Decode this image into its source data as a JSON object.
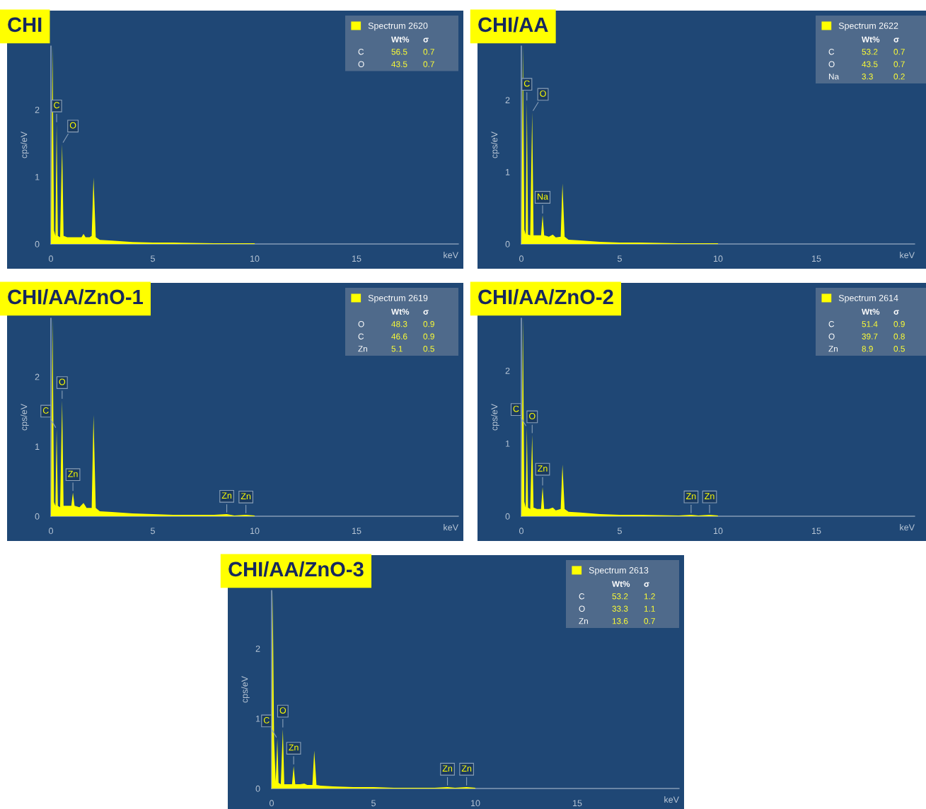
{
  "chart_data": [
    {
      "type": "area",
      "title": "CHI",
      "ylabel": "cps/eV",
      "xlabel": "keV",
      "xlim": [
        0,
        20
      ],
      "ylim": [
        0,
        2.95
      ],
      "xticks": [
        0,
        5,
        10,
        15
      ],
      "yticks": [
        0,
        1,
        2
      ],
      "grid": false,
      "legend": "top right",
      "x": [
        0,
        0.08,
        0.15,
        0.22,
        0.28,
        0.34,
        0.45,
        0.55,
        0.62,
        0.8,
        1.2,
        1.5,
        1.6,
        1.7,
        1.9,
        2.0,
        2.09,
        2.2,
        2.4,
        3,
        4,
        5,
        6,
        8,
        10
      ],
      "series": [
        {
          "name": "Spectrum 2620",
          "color": "#ffff00",
          "values": [
            0,
            2.95,
            0.2,
            0.12,
            1.79,
            0.12,
            0.1,
            1.49,
            0.12,
            0.1,
            0.1,
            0.1,
            0.15,
            0.1,
            0.1,
            0.12,
            0.99,
            0.1,
            0.06,
            0.05,
            0.03,
            0.02,
            0.02,
            0.01,
            0.01
          ]
        }
      ],
      "annotations": [
        "Wt%",
        "σ",
        "C",
        "56.5",
        "0.7",
        "O",
        "43.5",
        "0.7",
        {
          "text": "C",
          "x": 0.28,
          "y": 1.79
        },
        {
          "text": "O",
          "x": 0.55,
          "y": 1.49
        }
      ]
    },
    {
      "type": "area",
      "title": "CHI/AA",
      "ylabel": "cps/eV",
      "xlabel": "keV",
      "xlim": [
        0,
        20
      ],
      "ylim": [
        0,
        2.75
      ],
      "xticks": [
        0,
        5,
        10,
        15
      ],
      "yticks": [
        0,
        1,
        2
      ],
      "grid": false,
      "legend": "top right",
      "x": [
        0,
        0.08,
        0.15,
        0.22,
        0.28,
        0.34,
        0.45,
        0.55,
        0.62,
        0.8,
        1.0,
        1.08,
        1.16,
        1.4,
        1.6,
        1.75,
        2.0,
        2.09,
        2.2,
        2.4,
        3,
        4,
        5,
        6,
        8,
        10
      ],
      "series": [
        {
          "name": "Spectrum 2622",
          "color": "#ffff00",
          "values": [
            0,
            2.75,
            0.2,
            0.13,
            1.97,
            0.13,
            0.12,
            1.83,
            0.12,
            0.12,
            0.12,
            0.4,
            0.12,
            0.1,
            0.13,
            0.09,
            0.1,
            0.84,
            0.1,
            0.06,
            0.05,
            0.03,
            0.02,
            0.02,
            0.01,
            0.01
          ]
        }
      ],
      "annotations": [
        "Wt%",
        "σ",
        "C",
        "53.2",
        "0.7",
        "O",
        "43.5",
        "0.7",
        "Na",
        "3.3",
        "0.2",
        {
          "text": "C",
          "x": 0.28,
          "y": 1.97
        },
        {
          "text": "O",
          "x": 0.55,
          "y": 1.83
        },
        {
          "text": "Na",
          "x": 1.08,
          "y": 0.4
        }
      ]
    },
    {
      "type": "area",
      "title": "CHI/AA/ZnO-1",
      "ylabel": "cps/eV",
      "xlabel": "keV",
      "xlim": [
        0,
        20
      ],
      "ylim": [
        0,
        2.84
      ],
      "xticks": [
        0,
        5,
        10,
        15
      ],
      "yticks": [
        0,
        1,
        2
      ],
      "grid": false,
      "legend": "top right",
      "x": [
        0,
        0.08,
        0.15,
        0.22,
        0.28,
        0.34,
        0.45,
        0.55,
        0.62,
        0.8,
        1.0,
        1.08,
        1.16,
        1.4,
        1.6,
        1.75,
        2.0,
        2.09,
        2.2,
        2.4,
        3,
        4,
        5,
        6,
        8,
        8.63,
        9,
        9.57,
        10
      ],
      "series": [
        {
          "name": "Spectrum 2619",
          "color": "#ffff00",
          "values": [
            0,
            2.84,
            0.2,
            0.15,
            1.25,
            0.15,
            0.13,
            1.66,
            0.15,
            0.15,
            0.15,
            0.34,
            0.15,
            0.13,
            0.19,
            0.12,
            0.12,
            1.45,
            0.12,
            0.07,
            0.06,
            0.04,
            0.03,
            0.02,
            0.02,
            0.03,
            0.01,
            0.02,
            0.01
          ]
        }
      ],
      "annotations": [
        "Wt%",
        "σ",
        "O",
        "48.3",
        "0.9",
        "C",
        "46.6",
        "0.9",
        "Zn",
        "5.1",
        "0.5",
        {
          "text": "O",
          "x": 0.55,
          "y": 1.66
        },
        {
          "text": "C",
          "x": 0.28,
          "y": 1.25
        },
        {
          "text": "Zn",
          "x": 1.08,
          "y": 0.34
        },
        {
          "text": "Zn",
          "x": 8.63,
          "y": 0.03
        },
        {
          "text": "Zn",
          "x": 9.57,
          "y": 0.02
        }
      ]
    },
    {
      "type": "area",
      "title": "CHI/AA/ZnO-2",
      "ylabel": "cps/eV",
      "xlabel": "keV",
      "xlim": [
        0,
        20
      ],
      "ylim": [
        0,
        2.72
      ],
      "xticks": [
        0,
        5,
        10,
        15
      ],
      "yticks": [
        0,
        1,
        2
      ],
      "grid": false,
      "legend": "top right",
      "x": [
        0,
        0.08,
        0.15,
        0.22,
        0.28,
        0.34,
        0.45,
        0.55,
        0.62,
        0.8,
        1.0,
        1.08,
        1.16,
        1.4,
        1.6,
        1.75,
        2.0,
        2.09,
        2.2,
        2.4,
        3,
        4,
        5,
        6,
        8,
        8.63,
        9,
        9.57,
        10
      ],
      "series": [
        {
          "name": "Spectrum 2614",
          "color": "#ffff00",
          "values": [
            0,
            2.72,
            0.2,
            0.12,
            1.22,
            0.12,
            0.1,
            1.12,
            0.12,
            0.1,
            0.1,
            0.4,
            0.1,
            0.1,
            0.12,
            0.08,
            0.1,
            0.71,
            0.1,
            0.06,
            0.05,
            0.03,
            0.02,
            0.02,
            0.01,
            0.02,
            0.01,
            0.02,
            0.01
          ]
        }
      ],
      "annotations": [
        "Wt%",
        "σ",
        "C",
        "51.4",
        "0.9",
        "O",
        "39.7",
        "0.8",
        "Zn",
        "8.9",
        "0.5",
        {
          "text": "O",
          "x": 0.55,
          "y": 1.12
        },
        {
          "text": "C",
          "x": 0.28,
          "y": 1.22
        },
        {
          "text": "Zn",
          "x": 1.08,
          "y": 0.4
        },
        {
          "text": "Zn",
          "x": 8.63,
          "y": 0.02
        },
        {
          "text": "Zn",
          "x": 9.57,
          "y": 0.02
        }
      ]
    },
    {
      "type": "area",
      "title": "CHI/AA/ZnO-3",
      "ylabel": "cps/eV",
      "xlabel": "keV",
      "xlim": [
        0,
        20
      ],
      "ylim": [
        0,
        2.83
      ],
      "xticks": [
        0,
        5,
        10,
        15
      ],
      "yticks": [
        0,
        1,
        2
      ],
      "grid": false,
      "legend": "top right",
      "x": [
        0,
        0.05,
        0.12,
        0.2,
        0.28,
        0.34,
        0.45,
        0.55,
        0.62,
        0.8,
        1.0,
        1.08,
        1.16,
        1.4,
        1.6,
        1.75,
        2.0,
        2.09,
        2.2,
        2.4,
        3,
        4,
        5,
        6,
        8,
        8.63,
        9,
        9.57,
        10
      ],
      "series": [
        {
          "name": "Spectrum 2613",
          "color": "#ffff00",
          "values": [
            0,
            2.83,
            0.69,
            0.1,
            0.71,
            0.08,
            0.06,
            0.85,
            0.06,
            0.06,
            0.06,
            0.32,
            0.06,
            0.06,
            0.07,
            0.05,
            0.05,
            0.54,
            0.05,
            0.04,
            0.03,
            0.02,
            0.02,
            0.01,
            0.01,
            0.02,
            0.01,
            0.02,
            0.01
          ]
        }
      ],
      "annotations": [
        "Wt%",
        "σ",
        "C",
        "53.2",
        "1.2",
        "O",
        "33.3",
        "1.1",
        "Zn",
        "13.6",
        "0.7",
        {
          "text": "O",
          "x": 0.55,
          "y": 0.85
        },
        {
          "text": "C",
          "x": 0.28,
          "y": 0.71
        },
        {
          "text": "Zn",
          "x": 1.08,
          "y": 0.32
        },
        {
          "text": "Zn",
          "x": 8.63,
          "y": 0.02
        },
        {
          "text": "Zn",
          "x": 9.57,
          "y": 0.02
        }
      ]
    }
  ]
}
